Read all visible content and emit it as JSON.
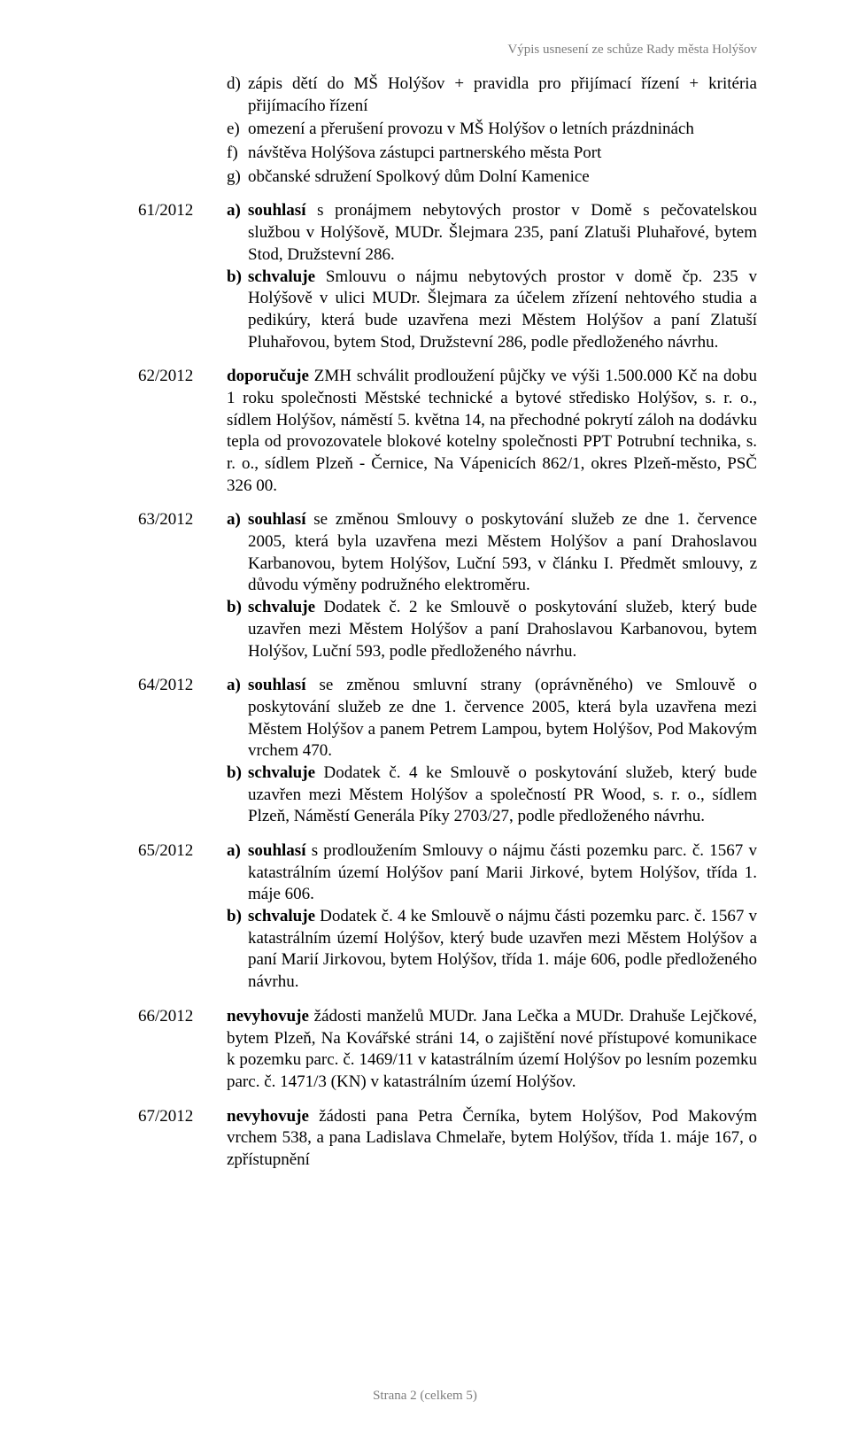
{
  "header_note": "Výpis usnesení ze schůze Rady města Holýšov",
  "intro_items": [
    {
      "marker": "d)",
      "text": "zápis dětí do MŠ Holýšov + pravidla pro přijímací řízení + kritéria přijímacího řízení"
    },
    {
      "marker": "e)",
      "text": "omezení a přerušení provozu v MŠ Holýšov o letních prázdninách"
    },
    {
      "marker": "f)",
      "text": "návštěva Holýšova zástupci partnerského města Port"
    },
    {
      "marker": "g)",
      "text": "občanské sdružení Spolkový dům Dolní Kamenice"
    }
  ],
  "entries": [
    {
      "num": "61/2012",
      "subs": [
        {
          "m": "a)",
          "lead": "souhlasí",
          "rest": " s pronájmem nebytových prostor v Domě s pečovatelskou službou v Holýšově, MUDr. Šlejmara 235, paní Zlatuši Pluhařové, bytem Stod, Družstevní 286."
        },
        {
          "m": "b)",
          "lead": "schvaluje",
          "rest": " Smlouvu o nájmu nebytových prostor v domě čp. 235 v Holýšově v ulici MUDr. Šlejmara za účelem zřízení nehtového studia a pedikúry, která bude uzavřena mezi Městem Holýšov a paní Zlatuší Pluhařovou, bytem Stod, Družstevní 286, podle předloženého návrhu."
        }
      ]
    },
    {
      "num": "62/2012",
      "plain_lead": "doporučuje",
      "plain_rest": " ZMH schválit prodloužení půjčky ve výši 1.500.000 Kč na dobu 1 roku společnosti Městské technické a bytové středisko Holýšov, s. r. o., sídlem Holýšov, náměstí 5. května 14, na přechodné pokrytí záloh na dodávku tepla od provozovatele blokové kotelny společnosti PPT Potrubní technika, s. r. o., sídlem Plzeň - Černice, Na Vápenicích 862/1, okres Plzeň-město, PSČ 326 00."
    },
    {
      "num": "63/2012",
      "subs": [
        {
          "m": "a)",
          "lead": "souhlasí",
          "rest": " se změnou Smlouvy o poskytování služeb ze dne 1. července 2005, která byla uzavřena mezi Městem Holýšov a paní Drahoslavou Karbanovou, bytem Holýšov, Luční 593, v článku I. Předmět smlouvy, z důvodu výměny podružného elektroměru."
        },
        {
          "m": "b)",
          "lead": "schvaluje",
          "rest": " Dodatek č. 2 ke Smlouvě o poskytování služeb, který bude uzavřen mezi Městem Holýšov a paní Drahoslavou Karbanovou, bytem Holýšov, Luční 593, podle předloženého návrhu."
        }
      ]
    },
    {
      "num": "64/2012",
      "subs": [
        {
          "m": "a)",
          "lead": "souhlasí",
          "rest": " se změnou smluvní strany (oprávněného) ve Smlouvě o poskytování služeb ze dne 1. července 2005, která byla uzavřena mezi Městem Holýšov a panem Petrem Lampou, bytem Holýšov, Pod Makovým vrchem 470."
        },
        {
          "m": "b)",
          "lead": "schvaluje",
          "rest": " Dodatek č. 4 ke Smlouvě o poskytování služeb, který bude uzavřen mezi Městem Holýšov a společností PR Wood, s. r. o., sídlem Plzeň, Náměstí Generála Píky 2703/27, podle předloženého návrhu."
        }
      ]
    },
    {
      "num": "65/2012",
      "subs": [
        {
          "m": "a)",
          "lead": "souhlasí",
          "rest": " s prodloužením Smlouvy o nájmu části pozemku parc. č. 1567 v katastrálním území Holýšov paní Marii Jirkové, bytem Holýšov, třída 1. máje 606."
        },
        {
          "m": "b)",
          "lead": "schvaluje",
          "rest": " Dodatek č. 4 ke Smlouvě o nájmu části pozemku parc. č. 1567 v katastrálním území Holýšov, který bude uzavřen mezi Městem Holýšov a paní Marií Jirkovou, bytem Holýšov, třída 1. máje 606, podle předloženého návrhu."
        }
      ]
    },
    {
      "num": "66/2012",
      "plain_lead": "nevyhovuje",
      "plain_rest": " žádosti manželů MUDr. Jana Lečka a MUDr. Drahuše Lejčkové, bytem Plzeň, Na Kovářské stráni 14, o zajištění nové přístupové komunikace k pozemku parc. č. 1469/11 v katastrálním území Holýšov po lesním pozemku parc. č. 1471/3 (KN) v katastrálním území Holýšov."
    },
    {
      "num": "67/2012",
      "plain_lead": "nevyhovuje",
      "plain_rest": " žádosti pana Petra Černíka, bytem Holýšov, Pod Makovým vrchem 538, a pana Ladislava Chmelaře, bytem Holýšov, třída 1. máje 167, o zpřístupnění"
    }
  ],
  "footer": "Strana 2 (celkem 5)"
}
